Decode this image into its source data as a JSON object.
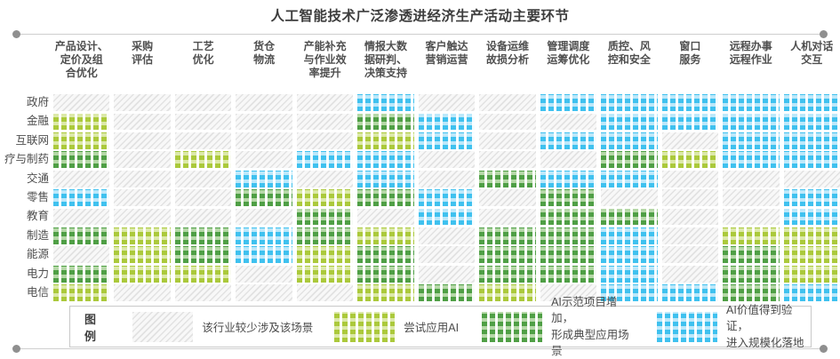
{
  "title": "人工智能技术广泛渗透进经济生产活动主要环节",
  "legend": {
    "title": "图例",
    "items": [
      {
        "level": 0,
        "label": "该行业较少涉及该场景",
        "color": "#e2e2e2"
      },
      {
        "level": 1,
        "label": "尝试应用AI",
        "color": "#abc93b"
      },
      {
        "level": 2,
        "label": "AI示范项目增加，\n形成典型应用场景",
        "color": "#4f9f45"
      },
      {
        "level": 3,
        "label": "AI价值得到验证，\n进入规模化落地",
        "color": "#3fc1ef"
      }
    ]
  },
  "chart_data": {
    "type": "heatmap",
    "title": "人工智能技术广泛渗透进经济生产活动主要环节",
    "columns": [
      "产品设计、\n定价及组\n合优化",
      "采购\n评估",
      "工艺\n优化",
      "货仓\n物流",
      "产能补充\n与作业效\n率提升",
      "情报大数\n据研判、\n决策支持",
      "客户触达\n营销运营",
      "设备运维\n故损分析",
      "管理调度\n运筹优化",
      "质控、风\n控和安全",
      "窗口\n服务",
      "远程办事\n远程作业",
      "人机对话\n交互"
    ],
    "rows": [
      "政府",
      "金融",
      "互联网",
      "疗与制药",
      "交通",
      "零售",
      "教育",
      "制造",
      "能源",
      "电力",
      "电信"
    ],
    "levels": [
      {
        "value": 0,
        "label": "该行业较少涉及该场景",
        "color": "#e2e2e2"
      },
      {
        "value": 1,
        "label": "尝试应用AI",
        "color": "#abc93b"
      },
      {
        "value": 2,
        "label": "AI示范项目增加，形成典型应用场景",
        "color": "#4f9f45"
      },
      {
        "value": 3,
        "label": "AI价值得到验证，进入规模化落地",
        "color": "#3fc1ef"
      }
    ],
    "matrix": [
      [
        0,
        0,
        0,
        0,
        0,
        3,
        0,
        0,
        3,
        3,
        3,
        3,
        3
      ],
      [
        1,
        0,
        0,
        0,
        0,
        2,
        3,
        0,
        0,
        3,
        3,
        3,
        3
      ],
      [
        1,
        0,
        0,
        0,
        0,
        1,
        3,
        0,
        3,
        3,
        0,
        3,
        3
      ],
      [
        2,
        0,
        1,
        0,
        3,
        3,
        0,
        0,
        0,
        2,
        1,
        3,
        3
      ],
      [
        0,
        0,
        0,
        3,
        0,
        3,
        0,
        2,
        3,
        3,
        0,
        0,
        0
      ],
      [
        3,
        0,
        0,
        2,
        1,
        2,
        3,
        0,
        2,
        0,
        0,
        0,
        3
      ],
      [
        0,
        0,
        0,
        0,
        2,
        0,
        3,
        0,
        2,
        2,
        0,
        0,
        3
      ],
      [
        2,
        1,
        2,
        3,
        2,
        1,
        0,
        2,
        2,
        3,
        0,
        1,
        1
      ],
      [
        0,
        1,
        2,
        3,
        1,
        2,
        0,
        2,
        2,
        3,
        0,
        2,
        1
      ],
      [
        2,
        1,
        1,
        0,
        1,
        2,
        0,
        2,
        2,
        3,
        0,
        2,
        1
      ],
      [
        1,
        0,
        0,
        0,
        0,
        1,
        2,
        1,
        0,
        3,
        3,
        2,
        3
      ]
    ]
  }
}
